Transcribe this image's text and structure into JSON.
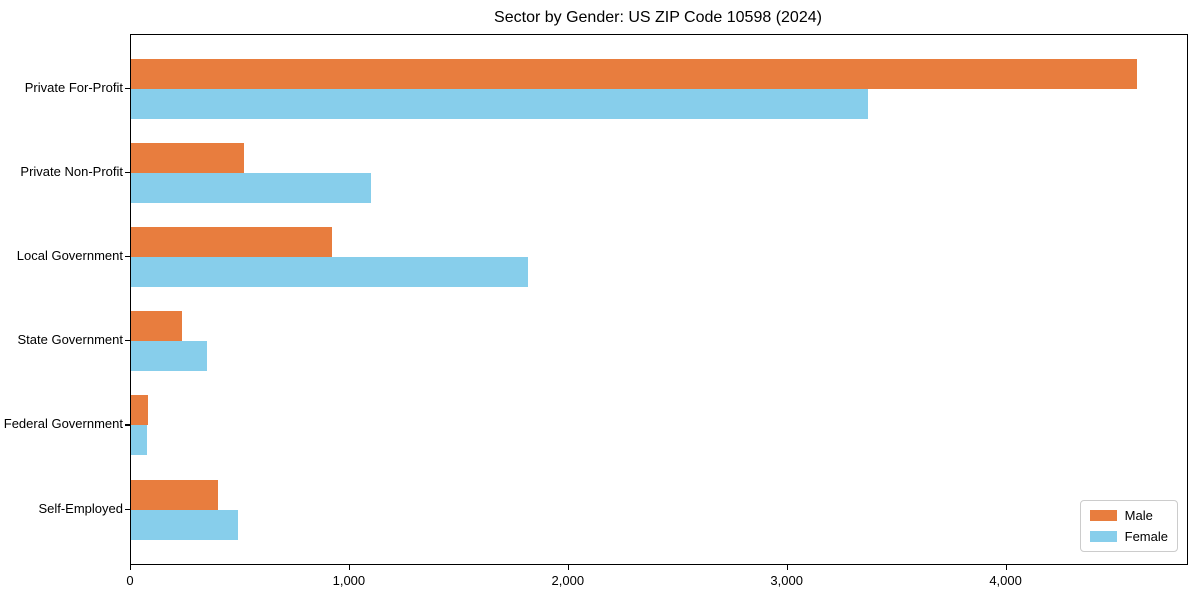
{
  "chart_data": {
    "type": "bar",
    "orientation": "horizontal",
    "title": "Sector by Gender: US ZIP Code 10598 (2024)",
    "categories": [
      "Private For-Profit",
      "Private Non-Profit",
      "Local Government",
      "State Government",
      "Federal Government",
      "Self-Employed"
    ],
    "series": [
      {
        "name": "Male",
        "color": "#E87D3E",
        "values": [
          4594,
          516,
          917,
          233,
          78,
          395
        ]
      },
      {
        "name": "Female",
        "color": "#87CEEB",
        "values": [
          3365,
          1097,
          1814,
          347,
          73,
          489
        ]
      }
    ],
    "xlabel": "",
    "ylabel": "",
    "xlim": [
      0,
      4824
    ],
    "x_ticks": [
      0,
      1000,
      2000,
      3000,
      4000
    ],
    "x_tick_labels": [
      "0",
      "1,000",
      "2,000",
      "3,000",
      "4,000"
    ],
    "grid": false,
    "legend_position": "lower right",
    "colors": {
      "male": "#E87D3E",
      "female": "#87CEEB",
      "spine": "#000000",
      "legend_border": "#cccccc"
    }
  }
}
